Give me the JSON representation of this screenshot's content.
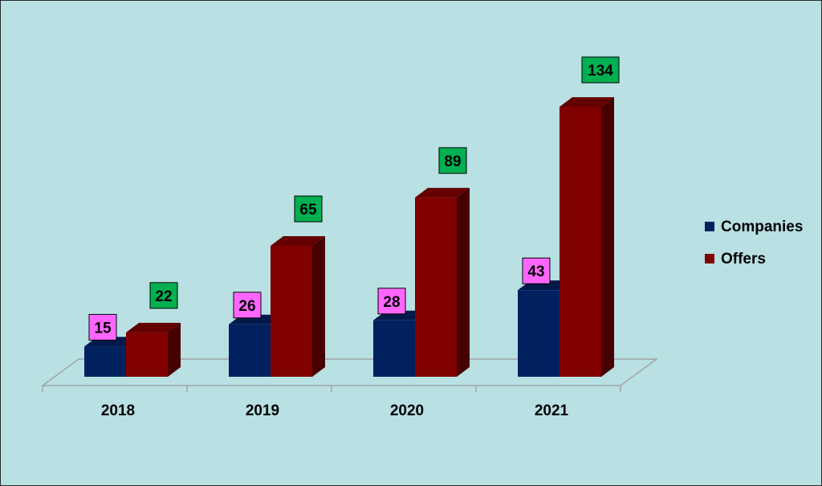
{
  "chart_data": {
    "type": "bar",
    "categories": [
      "2018",
      "2019",
      "2020",
      "2021"
    ],
    "series": [
      {
        "name": "Companies",
        "values": [
          15,
          26,
          28,
          43
        ],
        "color": "#002060",
        "label_color": "#ff66ff"
      },
      {
        "name": "Offers",
        "values": [
          22,
          65,
          89,
          134
        ],
        "color": "#800000",
        "label_color": "#00b050"
      }
    ],
    "title": "",
    "xlabel": "",
    "ylabel": "",
    "ylim": [
      0,
      140
    ],
    "grid": false,
    "legend": "right",
    "three_d": true
  }
}
